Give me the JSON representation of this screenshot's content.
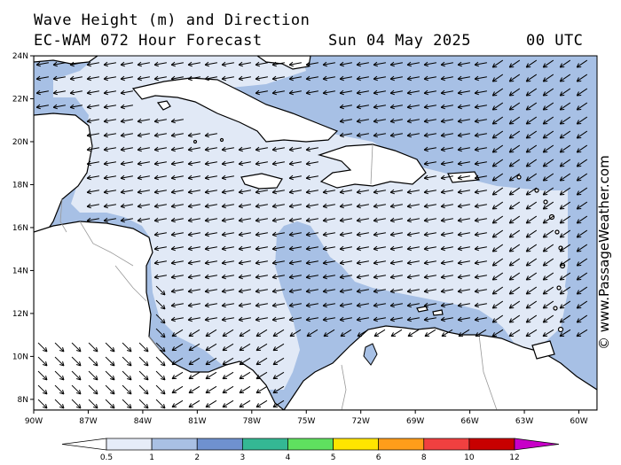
{
  "header": {
    "title": "Wave Height (m) and Direction",
    "model": "EC-WAM 072 Hour Forecast",
    "date": "Sun 04 May 2025",
    "time": "00 UTC"
  },
  "credit": "© www.PassageWeather.com",
  "map": {
    "lat_range": [
      7.5,
      24
    ],
    "lon_range": [
      -90,
      -59
    ],
    "lat_labels": [
      "24N",
      "22N",
      "20N",
      "18N",
      "16N",
      "14N",
      "12N",
      "10N",
      "8N"
    ],
    "lat_values": [
      24,
      22,
      20,
      18,
      16,
      14,
      12,
      10,
      8
    ],
    "lon_labels": [
      "90W",
      "87W",
      "84W",
      "81W",
      "78W",
      "75W",
      "72W",
      "69W",
      "66W",
      "63W",
      "60W"
    ],
    "lon_values": [
      -90,
      -87,
      -84,
      -81,
      -78,
      -75,
      -72,
      -69,
      -66,
      -63,
      -60
    ],
    "arrow_direction": "east-northeast waves propagating west-southwest"
  },
  "legend": {
    "labels": [
      "0.5",
      "1",
      "2",
      "3",
      "4",
      "5",
      "6",
      "8",
      "10",
      "12"
    ],
    "colors": [
      "#e6ecf8",
      "#a9c0e4",
      "#6f91cf",
      "#34b894",
      "#5fe05f",
      "#ffe500",
      "#ff9d1a",
      "#f04040",
      "#c80000",
      "#c800c8"
    ],
    "under_color": "#ffffff",
    "over_color": "#c800c8"
  },
  "colors": {
    "band_lt1": "#e1e9f6",
    "band_1to2": "#a7c0e5",
    "land": "#ffffff",
    "coast": "#000000"
  }
}
